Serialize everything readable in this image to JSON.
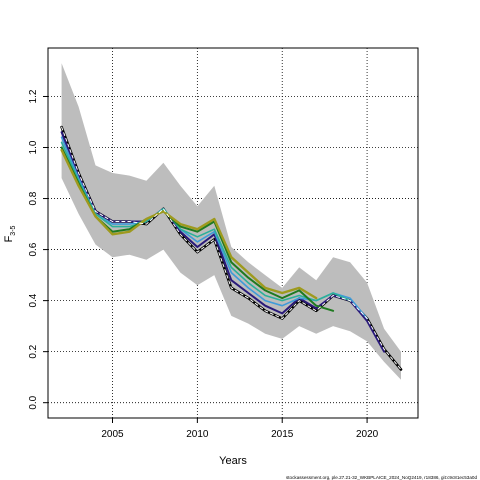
{
  "chart_data": {
    "type": "line",
    "xlabel": "Years",
    "ylabel": "F",
    "ylabel_sub": "3-5",
    "xlim": [
      2001.2,
      2023.0
    ],
    "ylim": [
      -0.06,
      1.39
    ],
    "grid": true,
    "x_ticks": [
      2005,
      2010,
      2015,
      2020
    ],
    "y_ticks": [
      0.0,
      0.2,
      0.4,
      0.6,
      0.8,
      1.0,
      1.2
    ],
    "y_tick_labels": [
      "0.0",
      "0.2",
      "0.4",
      "0.6",
      "0.8",
      "1.0",
      "1.2"
    ],
    "footer": "stockassessment.org, ple.27.21-32_WKBPLAICE_2024_NoQ2419, r18386, git:c9c81ec53a0d",
    "band": {
      "x": [
        2002,
        2003,
        2004,
        2005,
        2006,
        2007,
        2008,
        2009,
        2010,
        2011,
        2012,
        2013,
        2014,
        2015,
        2016,
        2017,
        2018,
        2019,
        2020,
        2021,
        2022
      ],
      "lower": [
        0.88,
        0.74,
        0.62,
        0.57,
        0.58,
        0.56,
        0.6,
        0.51,
        0.46,
        0.5,
        0.34,
        0.31,
        0.27,
        0.25,
        0.3,
        0.27,
        0.3,
        0.28,
        0.24,
        0.16,
        0.09
      ],
      "upper": [
        1.33,
        1.16,
        0.93,
        0.9,
        0.89,
        0.87,
        0.94,
        0.85,
        0.77,
        0.85,
        0.61,
        0.55,
        0.5,
        0.45,
        0.53,
        0.48,
        0.57,
        0.55,
        0.47,
        0.29,
        0.2
      ]
    },
    "series": [
      {
        "color": "#000000",
        "dash": "",
        "width": 2.6,
        "x": [
          2002,
          2003,
          2004,
          2005,
          2006,
          2007,
          2008,
          2009,
          2010,
          2011,
          2012,
          2013,
          2014,
          2015,
          2016,
          2017,
          2018,
          2019,
          2020,
          2021,
          2022
        ],
        "values": [
          1.08,
          0.9,
          0.75,
          0.71,
          0.71,
          0.7,
          0.76,
          0.66,
          0.59,
          0.64,
          0.45,
          0.41,
          0.36,
          0.33,
          0.4,
          0.36,
          0.42,
          0.4,
          0.33,
          0.21,
          0.13
        ]
      },
      {
        "color": "#2a1a7a",
        "dash": "",
        "width": 2.0,
        "x": [
          2002,
          2003,
          2004,
          2005,
          2006,
          2007,
          2008,
          2009,
          2010,
          2011,
          2012,
          2013,
          2014,
          2015,
          2016,
          2017,
          2018,
          2019,
          2020,
          2021
        ],
        "values": [
          1.06,
          0.89,
          0.75,
          0.71,
          0.71,
          0.71,
          0.76,
          0.67,
          0.61,
          0.66,
          0.48,
          0.43,
          0.38,
          0.35,
          0.41,
          0.37,
          0.42,
          0.4,
          0.32,
          0.2
        ]
      },
      {
        "color": "#3f9bd9",
        "dash": "",
        "width": 1.6,
        "x": [
          2002,
          2003,
          2004,
          2005,
          2006,
          2007,
          2008,
          2009,
          2010,
          2011,
          2012,
          2013,
          2014,
          2015,
          2016,
          2017,
          2018,
          2019,
          2020
        ],
        "values": [
          1.04,
          0.88,
          0.74,
          0.7,
          0.7,
          0.71,
          0.76,
          0.68,
          0.63,
          0.67,
          0.51,
          0.45,
          0.4,
          0.38,
          0.41,
          0.4,
          0.43,
          0.41,
          0.33
        ]
      },
      {
        "color": "#2bb09a",
        "dash": "",
        "width": 1.6,
        "x": [
          2002,
          2003,
          2004,
          2005,
          2006,
          2007,
          2008,
          2009,
          2010,
          2011,
          2012,
          2013,
          2014,
          2015,
          2016,
          2017,
          2018,
          2019
        ],
        "values": [
          1.02,
          0.87,
          0.74,
          0.69,
          0.69,
          0.71,
          0.76,
          0.68,
          0.65,
          0.68,
          0.53,
          0.47,
          0.42,
          0.4,
          0.42,
          0.4,
          0.43,
          0.4
        ]
      },
      {
        "color": "#1f7a20",
        "dash": "",
        "width": 2.0,
        "x": [
          2002,
          2003,
          2004,
          2005,
          2006,
          2007,
          2008,
          2009,
          2010,
          2011,
          2012,
          2013,
          2014,
          2015,
          2016,
          2017,
          2018
        ],
        "values": [
          1.0,
          0.86,
          0.73,
          0.67,
          0.68,
          0.72,
          0.75,
          0.69,
          0.67,
          0.71,
          0.55,
          0.49,
          0.44,
          0.41,
          0.44,
          0.38,
          0.36
        ]
      },
      {
        "color": "#9e9a1e",
        "dash": "",
        "width": 2.4,
        "x": [
          2002,
          2003,
          2004,
          2005,
          2006,
          2007,
          2008,
          2009,
          2010,
          2011,
          2012,
          2013,
          2014,
          2015,
          2016,
          2017
        ],
        "values": [
          0.99,
          0.85,
          0.73,
          0.66,
          0.67,
          0.72,
          0.75,
          0.7,
          0.68,
          0.72,
          0.57,
          0.51,
          0.45,
          0.43,
          0.45,
          0.41
        ]
      },
      {
        "color": "#ffffff",
        "dash": "3,3",
        "width": 1.0,
        "x": [
          2002,
          2003,
          2004,
          2005,
          2006,
          2007,
          2008,
          2009,
          2010,
          2011,
          2012,
          2013,
          2014,
          2015,
          2016,
          2017,
          2018,
          2019,
          2020,
          2021,
          2022
        ],
        "values": [
          1.08,
          0.9,
          0.75,
          0.71,
          0.71,
          0.7,
          0.76,
          0.66,
          0.59,
          0.64,
          0.45,
          0.41,
          0.36,
          0.33,
          0.4,
          0.36,
          0.42,
          0.4,
          0.33,
          0.21,
          0.13
        ]
      }
    ]
  }
}
